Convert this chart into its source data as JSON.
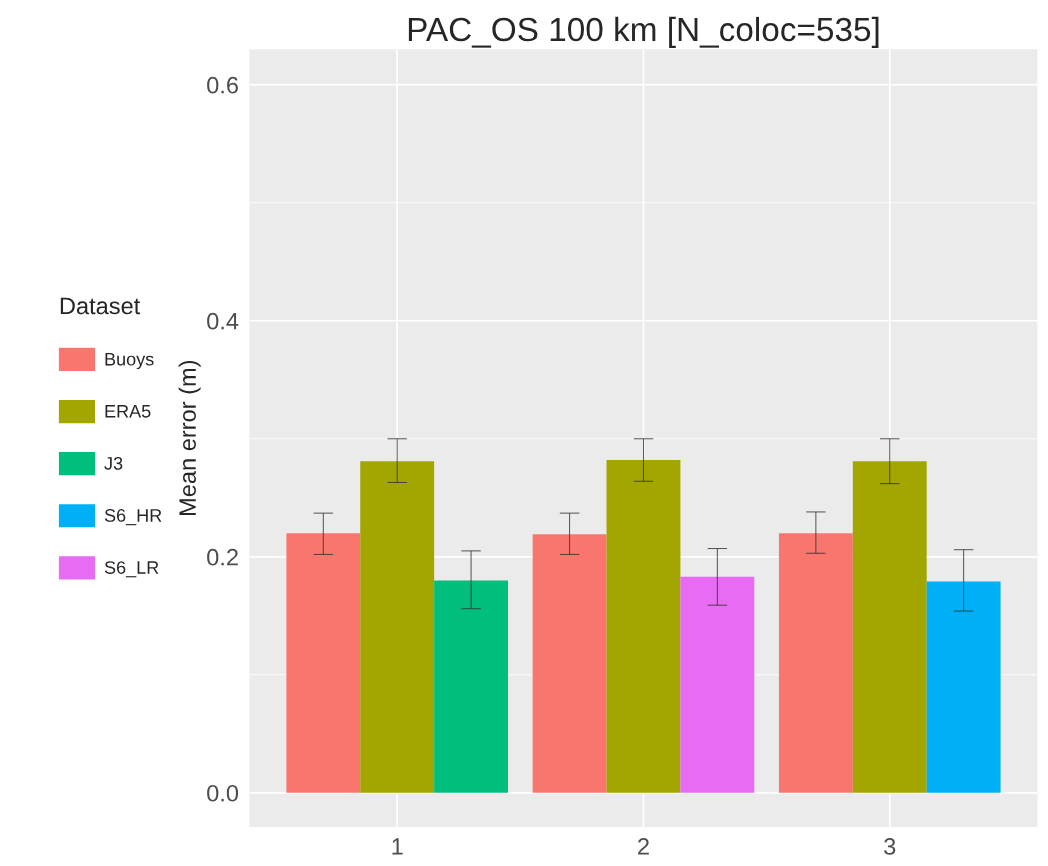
{
  "chart_data": {
    "type": "bar",
    "title": "PAC_OS 100 km [N_coloc=535]",
    "ylabel": "Mean error (m)",
    "legend_title": "Dataset",
    "categories": [
      "1",
      "2",
      "3"
    ],
    "series": [
      {
        "name": "Buoys",
        "color": "#f8766d",
        "values": [
          0.22,
          0.219,
          0.22
        ],
        "errors": [
          [
            0.202,
            0.237
          ],
          [
            0.202,
            0.237
          ],
          [
            0.203,
            0.238
          ]
        ]
      },
      {
        "name": "ERA5",
        "color": "#a3a500",
        "values": [
          0.281,
          0.282,
          0.281
        ],
        "errors": [
          [
            0.263,
            0.3
          ],
          [
            0.264,
            0.3
          ],
          [
            0.262,
            0.3
          ]
        ]
      },
      {
        "name": "J3",
        "color": "#00bf7d",
        "values": [
          0.18,
          null,
          null
        ],
        "errors": [
          [
            0.156,
            0.205
          ],
          null,
          null
        ]
      },
      {
        "name": "S6_HR",
        "color": "#00b0f6",
        "values": [
          null,
          null,
          0.179
        ],
        "errors": [
          null,
          null,
          [
            0.154,
            0.206
          ]
        ]
      },
      {
        "name": "S6_LR",
        "color": "#e76bf3",
        "values": [
          null,
          0.183,
          null
        ],
        "errors": [
          null,
          [
            0.159,
            0.207
          ],
          null
        ]
      }
    ],
    "ylim": [
      -0.029,
      0.63
    ],
    "yticks": [
      {
        "value": 0,
        "label": "0.0"
      },
      0.2,
      0.4,
      0.6
    ],
    "grid": true,
    "legend": "left"
  }
}
